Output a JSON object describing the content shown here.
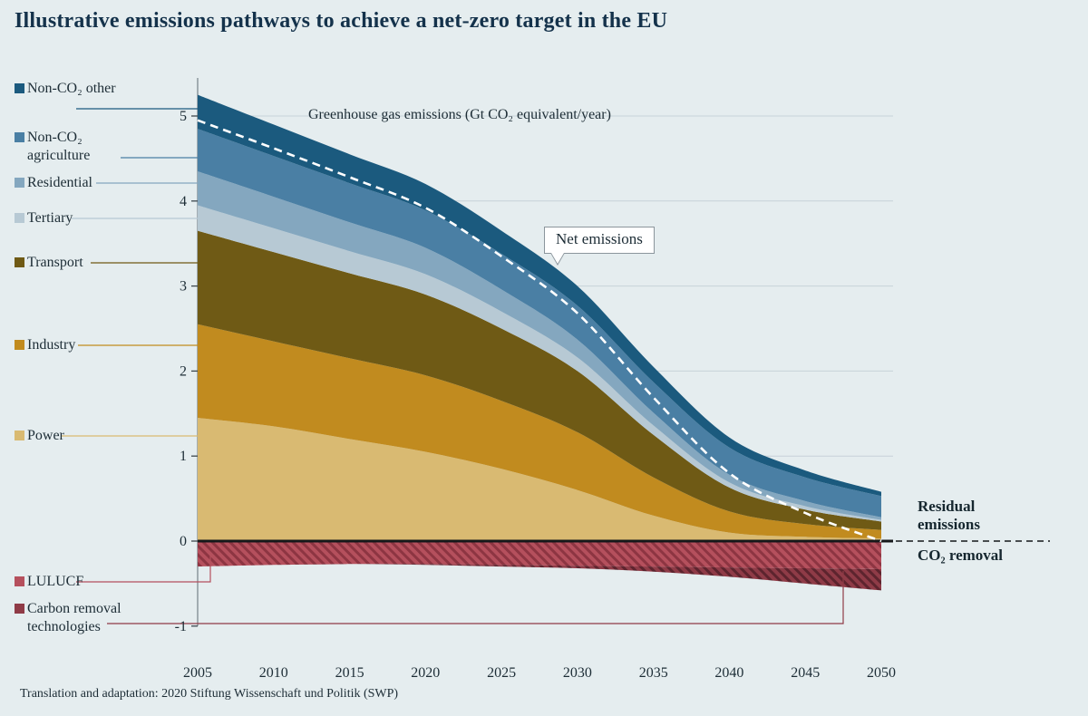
{
  "title": "Illustrative emissions pathways to achieve a net-zero target in the EU",
  "footer": "Translation and adaptation: 2020 Stiftung Wissenschaft und Politik (SWP)",
  "annotations": {
    "axis_title": "Greenhouse gas emissions (Gt CO₂ equivalent/year)",
    "net_emissions_label": "Net emissions",
    "residual_emissions_label": "Residual emissions",
    "co2_removal_label": "CO₂ removal"
  },
  "chart_data": {
    "type": "area",
    "stacked": true,
    "title": "Illustrative emissions pathways to achieve a net-zero target in the EU",
    "ylabel": "Greenhouse gas emissions (Gt CO₂ equivalent/year)",
    "x": [
      2005,
      2010,
      2015,
      2020,
      2025,
      2030,
      2035,
      2040,
      2045,
      2050
    ],
    "y_ticks": [
      -1,
      0,
      1,
      2,
      3,
      4,
      5
    ],
    "ylim": [
      -1.1,
      5.45
    ],
    "grid": true,
    "legend_position": "left",
    "series": [
      {
        "name": "Power",
        "key": "power",
        "values": [
          1.45,
          1.35,
          1.2,
          1.05,
          0.85,
          0.6,
          0.3,
          0.1,
          0.05,
          0.03
        ]
      },
      {
        "name": "Industry",
        "key": "industry",
        "values": [
          1.1,
          1.0,
          0.95,
          0.9,
          0.8,
          0.68,
          0.45,
          0.25,
          0.15,
          0.1
        ]
      },
      {
        "name": "Transport",
        "key": "transport",
        "values": [
          1.1,
          1.05,
          1.0,
          0.95,
          0.85,
          0.72,
          0.5,
          0.28,
          0.17,
          0.1
        ]
      },
      {
        "name": "Tertiary",
        "key": "tertiary",
        "values": [
          0.3,
          0.28,
          0.26,
          0.24,
          0.2,
          0.16,
          0.11,
          0.06,
          0.04,
          0.02
        ]
      },
      {
        "name": "Residential",
        "key": "residential",
        "values": [
          0.4,
          0.37,
          0.34,
          0.31,
          0.26,
          0.21,
          0.15,
          0.09,
          0.06,
          0.03
        ]
      },
      {
        "name": "Non-CO₂ agriculture",
        "key": "nonco2_agriculture",
        "values": [
          0.5,
          0.48,
          0.46,
          0.44,
          0.42,
          0.4,
          0.36,
          0.32,
          0.28,
          0.25
        ]
      },
      {
        "name": "Non-CO₂ other",
        "key": "nonco2_other",
        "values": [
          0.4,
          0.37,
          0.34,
          0.31,
          0.27,
          0.23,
          0.18,
          0.12,
          0.08,
          0.05
        ]
      }
    ],
    "negative_series": [
      {
        "name": "LULUCF",
        "key": "lulucf",
        "values": [
          -0.3,
          -0.28,
          -0.27,
          -0.27,
          -0.28,
          -0.29,
          -0.3,
          -0.31,
          -0.32,
          -0.33
        ]
      },
      {
        "name": "Carbon removal technologies",
        "key": "cdr",
        "values": [
          0,
          0,
          0,
          -0.01,
          -0.02,
          -0.03,
          -0.06,
          -0.11,
          -0.18,
          -0.25
        ]
      }
    ],
    "net_line": {
      "name": "Net emissions",
      "style": "dashed-white",
      "values": [
        4.95,
        4.62,
        4.28,
        3.92,
        3.35,
        2.68,
        1.69,
        0.8,
        0.33,
        0.0
      ]
    },
    "colors": {
      "power": "#d9ba72",
      "industry": "#c18b1f",
      "transport": "#6f5a15",
      "tertiary": "#b7c9d4",
      "residential": "#84a7bf",
      "nonco2_agriculture": "#4a7fa4",
      "nonco2_other": "#1b5a7e",
      "lulucf": "#b5505d",
      "lulucf_hatch": "#8d3542",
      "cdr": "#8f3b47",
      "cdr_hatch": "#5d242e",
      "net_line": "#ffffff",
      "background": "#e5edef",
      "gridline": "#c7d2d8",
      "zero_line": "#15181a"
    }
  }
}
